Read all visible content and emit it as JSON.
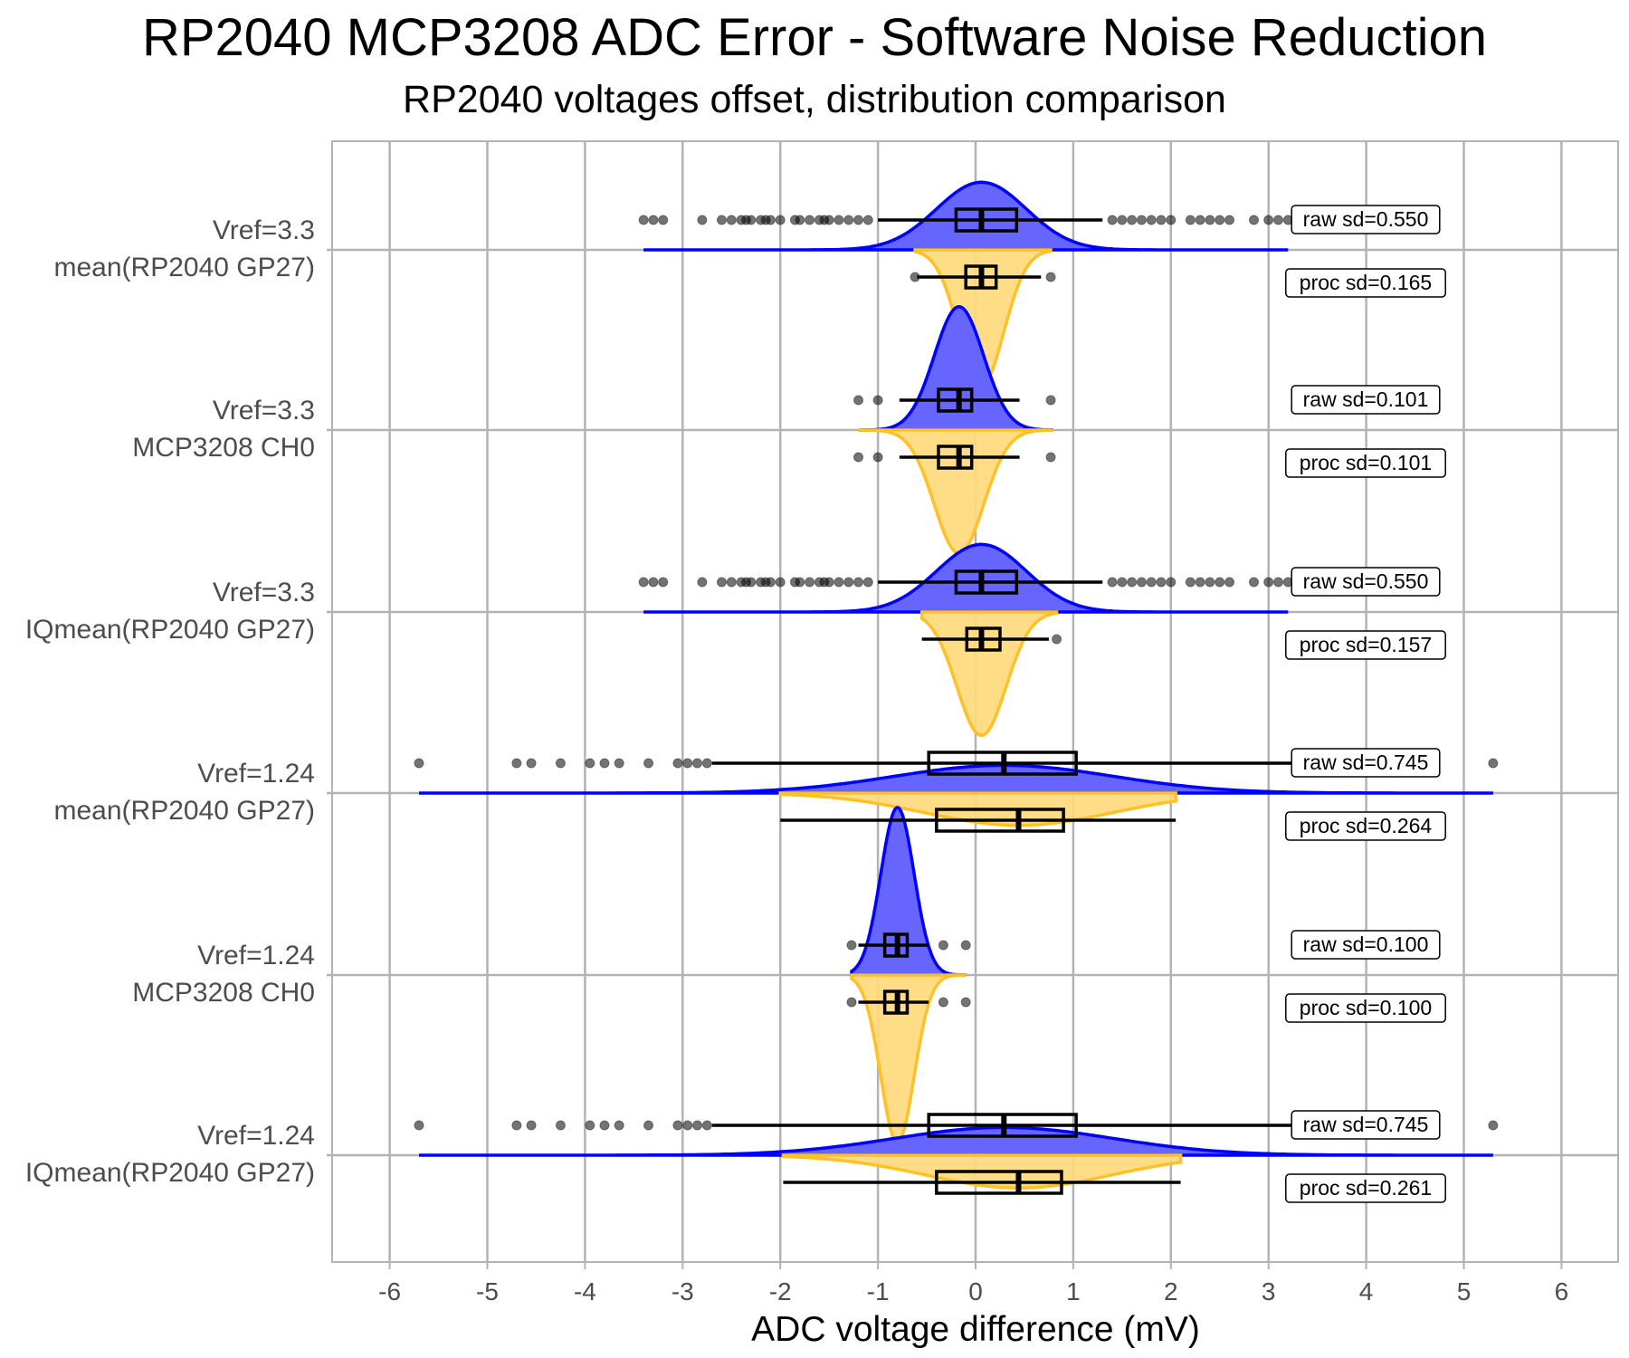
{
  "chart_data": {
    "type": "raincloud",
    "title": "RP2040 MCP3208 ADC Error - Software Noise Reduction",
    "subtitle": "RP2040 voltages offset, distribution comparison",
    "xlabel": "ADC voltage difference (mV)",
    "ylabel": "",
    "xlim": [
      -6.6,
      6.6
    ],
    "xticks": [
      -6,
      -5,
      -4,
      -3,
      -2,
      -1,
      0,
      1,
      2,
      3,
      4,
      5,
      6
    ],
    "grid": true,
    "colors": {
      "raw_line": "#0000ff",
      "raw_fill": "#6666ff",
      "proc_line": "#ffc125",
      "proc_fill": "#ffd97a"
    },
    "categories": [
      {
        "label_line1": "Vref=3.3",
        "label_line2": "mean(RP2040 GP27)",
        "raw": {
          "sd_label": "raw sd=0.550",
          "q1": -0.2,
          "median": 0.06,
          "q3": 0.42,
          "whisker_low": -1.0,
          "whisker_high": 1.3,
          "outliers": [
            -3.4,
            -3.3,
            -3.2,
            -2.8,
            -2.6,
            -2.5,
            -2.4,
            -2.35,
            -2.3,
            -2.2,
            -2.15,
            -2.1,
            -2.0,
            -1.85,
            -1.8,
            -1.7,
            -1.6,
            -1.55,
            -1.5,
            -1.4,
            -1.3,
            -1.2,
            -1.1,
            1.4,
            1.5,
            1.6,
            1.7,
            1.8,
            1.9,
            2.0,
            2.2,
            2.3,
            2.4,
            2.5,
            2.6,
            2.85,
            3.0,
            3.1,
            3.2
          ]
        },
        "proc": {
          "sd_label": "proc sd=0.165",
          "q1": -0.1,
          "median": 0.06,
          "q3": 0.21,
          "whisker_low": -0.6,
          "whisker_high": 0.67,
          "outliers": [
            -0.62,
            0.77
          ]
        }
      },
      {
        "label_line1": "Vref=3.3",
        "label_line2": "MCP3208 CH0",
        "raw": {
          "sd_label": "raw sd=0.101",
          "q1": -0.38,
          "median": -0.17,
          "q3": -0.04,
          "whisker_low": -0.78,
          "whisker_high": 0.45,
          "outliers": [
            -1.2,
            -1.0,
            0.77
          ]
        },
        "proc": {
          "sd_label": "proc sd=0.101",
          "q1": -0.38,
          "median": -0.17,
          "q3": -0.04,
          "whisker_low": -0.78,
          "whisker_high": 0.45,
          "outliers": [
            -1.2,
            -1.0,
            0.77
          ]
        }
      },
      {
        "label_line1": "Vref=3.3",
        "label_line2": "IQmean(RP2040 GP27)",
        "raw": {
          "sd_label": "raw sd=0.550",
          "q1": -0.2,
          "median": 0.06,
          "q3": 0.42,
          "whisker_low": -1.0,
          "whisker_high": 1.3,
          "outliers": [
            -3.4,
            -3.3,
            -3.2,
            -2.8,
            -2.6,
            -2.5,
            -2.4,
            -2.35,
            -2.3,
            -2.2,
            -2.15,
            -2.1,
            -2.0,
            -1.85,
            -1.8,
            -1.7,
            -1.6,
            -1.55,
            -1.5,
            -1.4,
            -1.3,
            -1.2,
            -1.1,
            1.4,
            1.5,
            1.6,
            1.7,
            1.8,
            1.9,
            2.0,
            2.2,
            2.3,
            2.4,
            2.5,
            2.6,
            2.85,
            3.0,
            3.1,
            3.2
          ]
        },
        "proc": {
          "sd_label": "proc sd=0.157",
          "q1": -0.09,
          "median": 0.06,
          "q3": 0.25,
          "whisker_low": -0.55,
          "whisker_high": 0.75,
          "outliers": [
            0.83
          ]
        }
      },
      {
        "label_line1": "Vref=1.24",
        "label_line2": "mean(RP2040 GP27)",
        "raw": {
          "sd_label": "raw sd=0.745",
          "q1": -0.48,
          "median": 0.29,
          "q3": 1.03,
          "whisker_low": -2.7,
          "whisker_high": 3.27,
          "outliers": [
            -5.7,
            -4.7,
            -4.55,
            -4.25,
            -3.95,
            -3.8,
            -3.65,
            -3.35,
            -3.05,
            -2.95,
            -2.85,
            -2.75,
            5.3
          ]
        },
        "proc": {
          "sd_label": "proc sd=0.264",
          "q1": -0.4,
          "median": 0.44,
          "q3": 0.9,
          "whisker_low": -2.0,
          "whisker_high": 2.05,
          "outliers": []
        }
      },
      {
        "label_line1": "Vref=1.24",
        "label_line2": "MCP3208 CH0",
        "raw": {
          "sd_label": "raw sd=0.100",
          "q1": -0.93,
          "median": -0.8,
          "q3": -0.7,
          "whisker_low": -1.2,
          "whisker_high": -0.48,
          "outliers": [
            -1.27,
            -0.33,
            -0.1
          ]
        },
        "proc": {
          "sd_label": "proc sd=0.100",
          "q1": -0.93,
          "median": -0.8,
          "q3": -0.7,
          "whisker_low": -1.2,
          "whisker_high": -0.48,
          "outliers": [
            -1.27,
            -0.33,
            -0.1
          ]
        }
      },
      {
        "label_line1": "Vref=1.24",
        "label_line2": "IQmean(RP2040 GP27)",
        "raw": {
          "sd_label": "raw sd=0.745",
          "q1": -0.48,
          "median": 0.29,
          "q3": 1.03,
          "whisker_low": -2.7,
          "whisker_high": 3.27,
          "outliers": [
            -5.7,
            -4.7,
            -4.55,
            -4.25,
            -3.95,
            -3.8,
            -3.65,
            -3.35,
            -3.05,
            -2.95,
            -2.85,
            -2.75,
            5.3
          ]
        },
        "proc": {
          "sd_label": "proc sd=0.261",
          "q1": -0.4,
          "median": 0.44,
          "q3": 0.88,
          "whisker_low": -1.97,
          "whisker_high": 2.1,
          "outliers": []
        }
      }
    ]
  }
}
